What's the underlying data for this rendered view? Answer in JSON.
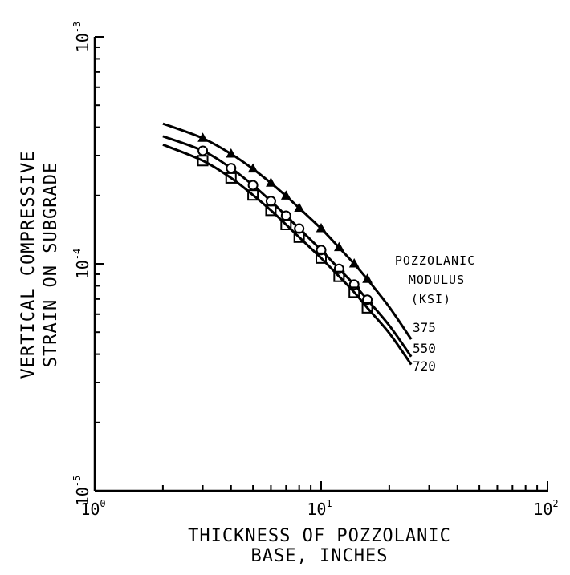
{
  "chart_data": {
    "type": "line",
    "x_scale": "log",
    "y_scale": "log",
    "xlim": [
      1,
      100
    ],
    "ylim": [
      1e-05,
      0.001
    ],
    "grid": false,
    "xlabel": [
      "THICKNESS OF POZZOLANIC",
      "BASE, INCHES"
    ],
    "ylabel": [
      "VERTICAL COMPRESSIVE",
      "STRAIN ON SUBGRADE"
    ],
    "x_ticks": [
      {
        "base": "10",
        "exp": "0",
        "value": 1
      },
      {
        "base": "10",
        "exp": "1",
        "value": 10
      },
      {
        "base": "10",
        "exp": "2",
        "value": 100
      }
    ],
    "y_ticks": [
      {
        "base": "10",
        "exp": "-5",
        "value": 1e-05
      },
      {
        "base": "10",
        "exp": "-4",
        "value": 0.0001
      },
      {
        "base": "10",
        "exp": "-3",
        "value": 0.001
      }
    ],
    "legend": {
      "title": [
        "POZZOLANIC",
        "MODULUS",
        "(KSI)"
      ],
      "placement": "center-right"
    },
    "series": [
      {
        "name": "375",
        "marker": "triangle",
        "curve_x": [
          2,
          3,
          4,
          5,
          6,
          7,
          8,
          10,
          12,
          14,
          16,
          20,
          25
        ],
        "curve_y": [
          0.000415,
          0.000358,
          0.000305,
          0.000262,
          0.000227,
          0.000199,
          0.000176,
          0.000143,
          0.000118,
          0.0001,
          8.55e-05,
          6.45e-05,
          4.65e-05
        ],
        "points_x": [
          3,
          4,
          5,
          6,
          7,
          8,
          10,
          12,
          14,
          16
        ],
        "points_y": [
          0.000358,
          0.000305,
          0.000262,
          0.000227,
          0.000199,
          0.000176,
          0.000143,
          0.000118,
          0.0001,
          8.55e-05
        ]
      },
      {
        "name": "550",
        "marker": "circle",
        "curve_x": [
          2,
          3,
          4,
          5,
          6,
          7,
          8,
          10,
          12,
          14,
          16,
          20,
          25
        ],
        "curve_y": [
          0.000365,
          0.000315,
          0.000264,
          0.000222,
          0.000189,
          0.000163,
          0.000143,
          0.000115,
          9.5e-05,
          8.1e-05,
          6.95e-05,
          5.35e-05,
          3.9e-05
        ],
        "points_x": [
          3,
          4,
          5,
          6,
          7,
          8,
          10,
          12,
          14,
          16
        ],
        "points_y": [
          0.000315,
          0.000264,
          0.000222,
          0.000189,
          0.000163,
          0.000143,
          0.000115,
          9.5e-05,
          8.1e-05,
          6.95e-05
        ]
      },
      {
        "name": "720",
        "marker": "square",
        "curve_x": [
          2,
          3,
          4,
          5,
          6,
          7,
          8,
          10,
          12,
          14,
          16,
          20,
          25
        ],
        "curve_y": [
          0.000335,
          0.000285,
          0.000239,
          0.000201,
          0.000172,
          0.000149,
          0.000131,
          0.000106,
          8.8e-05,
          7.5e-05,
          6.4e-05,
          4.95e-05,
          3.6e-05
        ],
        "points_x": [
          3,
          4,
          5,
          6,
          7,
          8,
          10,
          12,
          14,
          16
        ],
        "points_y": [
          0.000285,
          0.000239,
          0.000201,
          0.000172,
          0.000149,
          0.000131,
          0.000106,
          8.8e-05,
          7.5e-05,
          6.4e-05
        ]
      }
    ]
  }
}
